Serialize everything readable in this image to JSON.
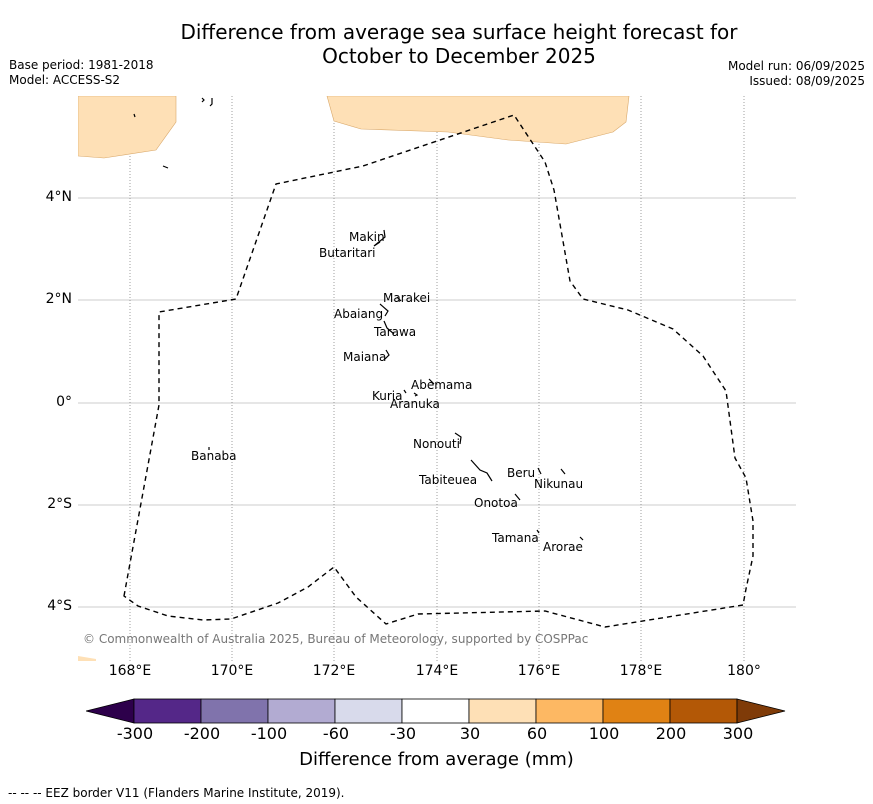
{
  "title": {
    "line1": "Difference from average sea surface height forecast for",
    "line2": "October to December 2025"
  },
  "meta_left": {
    "base_period": "Base period: 1981-2018",
    "model": "Model: ACCESS-S2"
  },
  "meta_right": {
    "model_run": "Model run: 06/09/2025",
    "issued": "Issued: 08/09/2025"
  },
  "map": {
    "lat_labels": [
      "4°N",
      "2°N",
      "0°",
      "2°S",
      "4°S"
    ],
    "lon_labels": [
      "168°E",
      "170°E",
      "172°E",
      "174°E",
      "176°E",
      "178°E",
      "180°"
    ],
    "islands": [
      "Makin",
      "Butaritari",
      "Marakei",
      "Abaiang",
      "Tarawa",
      "Maiana",
      "Abemama",
      "Kuria",
      "Aranuka",
      "Nonouti",
      "Banaba",
      "Beru",
      "Nikunau",
      "Tabiteuea",
      "Onotoa",
      "Tamana",
      "Arorae"
    ],
    "copyright": "© Commonwealth of Australia 2025, Bureau of Meteorology, supported by COSPPac",
    "colors": {
      "anomaly_fill": "#fee0b6",
      "eez_border": "#000000",
      "gridline": "#cccccc"
    }
  },
  "colorbar": {
    "ticks": [
      "-300",
      "-200",
      "-100",
      "-60",
      "-30",
      "30",
      "60",
      "100",
      "200",
      "300"
    ],
    "colors": [
      "#2d004b",
      "#542788",
      "#8073ac",
      "#b2abd2",
      "#d8daeb",
      "#ffffff",
      "#fee0b6",
      "#fdb863",
      "#e08214",
      "#b35806",
      "#7f3b08"
    ],
    "label": "Difference from average (mm)"
  },
  "footnote": "--  --  -- EEZ border V11 (Flanders Marine Institute, 2019)."
}
